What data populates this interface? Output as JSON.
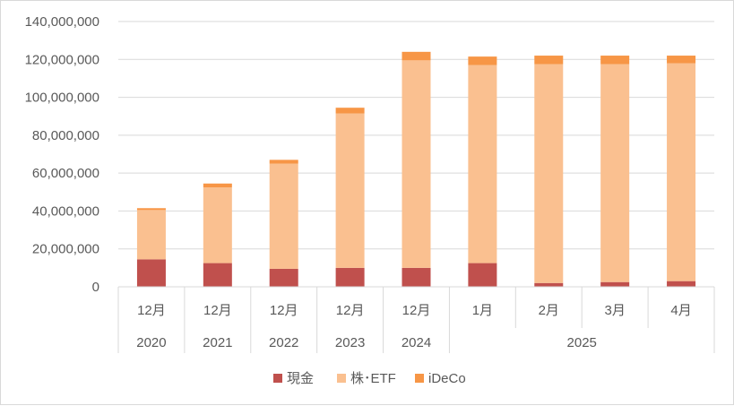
{
  "chart_data": {
    "type": "bar",
    "stacked": true,
    "categories": [
      "12月",
      "12月",
      "12月",
      "12月",
      "12月",
      "1月",
      "2月",
      "3月",
      "4月"
    ],
    "year_groups": [
      {
        "label": "2020",
        "span": 1
      },
      {
        "label": "2021",
        "span": 1
      },
      {
        "label": "2022",
        "span": 1
      },
      {
        "label": "2023",
        "span": 1
      },
      {
        "label": "2024",
        "span": 1
      },
      {
        "label": "2025",
        "span": 4
      }
    ],
    "series": [
      {
        "name": "現金",
        "color": "#c0504d",
        "values": [
          14500000,
          12500000,
          9500000,
          10000000,
          10000000,
          12500000,
          2000000,
          2500000,
          3000000
        ]
      },
      {
        "name": "株･ETF",
        "color": "#fac090",
        "values": [
          26000000,
          40000000,
          55500000,
          81500000,
          109500000,
          104500000,
          115500000,
          115000000,
          115000000
        ]
      },
      {
        "name": "iDeCo",
        "color": "#f79646",
        "values": [
          1000000,
          2000000,
          2000000,
          3000000,
          4500000,
          4500000,
          4500000,
          4500000,
          4000000
        ]
      }
    ],
    "ylim": [
      0,
      140000000
    ],
    "yticks": [
      "0",
      "20,000,000",
      "40,000,000",
      "60,000,000",
      "80,000,000",
      "100,000,000",
      "120,000,000",
      "140,000,000"
    ],
    "ytick_values": [
      0,
      20000000,
      40000000,
      60000000,
      80000000,
      100000000,
      120000000,
      140000000
    ],
    "grid": true,
    "legend_position": "bottom"
  }
}
